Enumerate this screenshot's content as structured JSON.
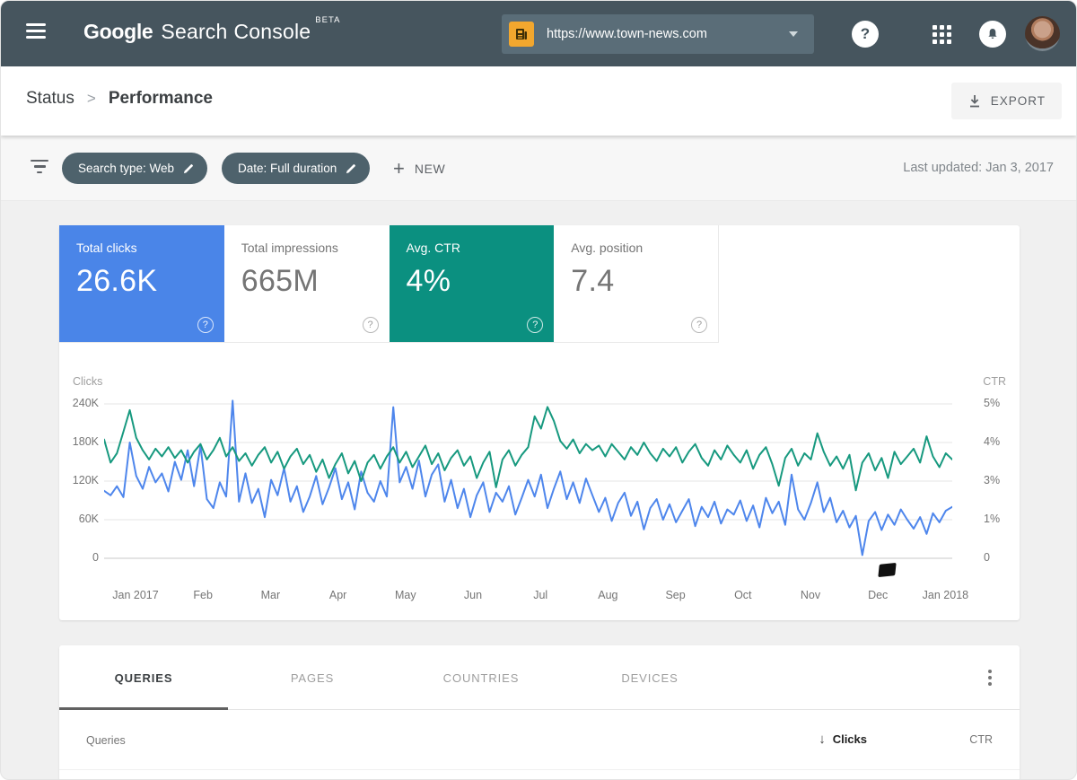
{
  "topbar": {
    "logo_google": "Google",
    "logo_word2": "Search",
    "logo_word3": "Console",
    "logo_beta": "BETA",
    "property_url": "https://www.town-news.com"
  },
  "header": {
    "breadcrumb_root": "Status",
    "breadcrumb_sep": ">",
    "breadcrumb_current": "Performance",
    "export_label": "EXPORT"
  },
  "filters": {
    "chips": [
      {
        "label": "Search type: Web"
      },
      {
        "label": "Date: Full duration"
      }
    ],
    "new_plus": "+",
    "new_label": "NEW",
    "last_updated": "Last updated: Jan 3, 2017"
  },
  "metrics": {
    "cards": [
      {
        "label": "Total clicks",
        "value": "26.6K",
        "selected": true,
        "bg": "#4A85E8"
      },
      {
        "label": "Total impressions",
        "value": "665M",
        "selected": false,
        "bg": "#ffffff"
      },
      {
        "label": "Avg. CTR",
        "value": "4%",
        "selected": true,
        "bg": "#0B9080"
      },
      {
        "label": "Avg. position",
        "value": "7.4",
        "selected": false,
        "bg": "#ffffff"
      }
    ]
  },
  "chart_data": {
    "type": "line",
    "title": "Clicks and CTR over time",
    "grid": true,
    "legend_position": "none",
    "left_axis": {
      "label": "Clicks",
      "ticks": [
        "240K",
        "180K",
        "120K",
        "60K",
        "0"
      ],
      "max": 240,
      "values_unit": "thousands of clicks",
      "ylim": [
        0,
        240000
      ]
    },
    "right_axis": {
      "label": "CTR",
      "ticks": [
        "5%",
        "4%",
        "3%",
        "1%",
        "0"
      ],
      "max": 5,
      "values_unit": "percent",
      "ylim": [
        0,
        5
      ]
    },
    "x_ticks": [
      "Jan 2017",
      "Feb",
      "Mar",
      "Apr",
      "May",
      "Jun",
      "Jul",
      "Aug",
      "Sep",
      "Oct",
      "Nov",
      "Dec",
      "Jan 2018"
    ],
    "series": [
      {
        "name": "Clicks",
        "axis": "left",
        "color": "#4E86EC",
        "values": [
          105,
          98,
          112,
          95,
          180,
          128,
          108,
          142,
          118,
          132,
          104,
          150,
          122,
          168,
          112,
          175,
          92,
          78,
          118,
          96,
          245,
          88,
          132,
          86,
          108,
          64,
          122,
          98,
          140,
          88,
          112,
          72,
          96,
          128,
          84,
          110,
          140,
          92,
          118,
          76,
          135,
          102,
          88,
          120,
          96,
          235,
          118,
          142,
          108,
          152,
          96,
          130,
          146,
          88,
          122,
          78,
          108,
          64,
          98,
          118,
          72,
          102,
          88,
          112,
          68,
          94,
          122,
          96,
          130,
          78,
          108,
          135,
          92,
          118,
          86,
          124,
          98,
          72,
          94,
          58,
          86,
          102,
          66,
          88,
          45,
          78,
          92,
          60,
          84,
          56,
          74,
          92,
          50,
          80,
          64,
          88,
          54,
          76,
          68,
          90,
          58,
          82,
          48,
          94,
          70,
          88,
          52,
          130,
          76,
          60,
          86,
          118,
          72,
          94,
          56,
          74,
          48,
          66,
          5,
          58,
          72,
          44,
          68,
          52,
          76,
          60,
          46,
          64,
          38,
          70,
          56,
          74,
          80
        ]
      },
      {
        "name": "CTR",
        "axis": "right",
        "color": "#17997F",
        "values": [
          3.85,
          3.1,
          3.4,
          4.1,
          4.8,
          3.9,
          3.5,
          3.2,
          3.55,
          3.3,
          3.6,
          3.25,
          3.5,
          3.1,
          3.45,
          3.7,
          3.2,
          3.5,
          3.9,
          3.3,
          3.6,
          3.15,
          3.4,
          3.0,
          3.35,
          3.6,
          3.1,
          3.45,
          2.9,
          3.3,
          3.55,
          3.05,
          3.35,
          2.8,
          3.2,
          2.6,
          3.05,
          3.4,
          2.75,
          3.15,
          2.5,
          3.1,
          3.35,
          2.9,
          3.3,
          3.6,
          3.1,
          3.45,
          2.95,
          3.3,
          3.65,
          3.05,
          3.4,
          2.85,
          3.25,
          3.5,
          3.0,
          3.3,
          2.6,
          3.1,
          3.45,
          2.3,
          3.2,
          3.5,
          3.0,
          3.35,
          3.6,
          4.6,
          4.2,
          4.9,
          4.45,
          3.8,
          3.55,
          3.85,
          3.4,
          3.7,
          3.5,
          3.65,
          3.3,
          3.7,
          3.45,
          3.2,
          3.6,
          3.35,
          3.75,
          3.4,
          3.15,
          3.55,
          3.3,
          3.6,
          3.1,
          3.45,
          3.7,
          3.25,
          3.0,
          3.5,
          3.2,
          3.65,
          3.35,
          3.1,
          3.5,
          2.9,
          3.35,
          3.6,
          3.05,
          2.35,
          3.25,
          3.55,
          3.0,
          3.4,
          3.2,
          4.05,
          3.45,
          3.0,
          3.3,
          2.9,
          3.35,
          2.2,
          3.1,
          3.4,
          2.85,
          3.25,
          2.6,
          3.45,
          3.05,
          3.3,
          3.55,
          3.1,
          3.95,
          3.3,
          2.95,
          3.4,
          3.2
        ]
      }
    ]
  },
  "table": {
    "tabs": [
      "QUERIES",
      "PAGES",
      "COUNTRIES",
      "DEVICES"
    ],
    "active_tab": "QUERIES",
    "col_key": "Queries",
    "sort_icon": "↓",
    "col_clicks": "Clicks",
    "col_ctr": "CTR"
  },
  "colors": {
    "topbar_bg": "#46555E",
    "chip_bg": "#4E626C",
    "property_icon_bg": "#F2A72E",
    "clicks_blue": "#4E86EC",
    "ctr_green": "#17997F",
    "card_blue": "#4A85E8",
    "card_teal": "#0B9080",
    "page_bg": "#f0f0f0"
  }
}
